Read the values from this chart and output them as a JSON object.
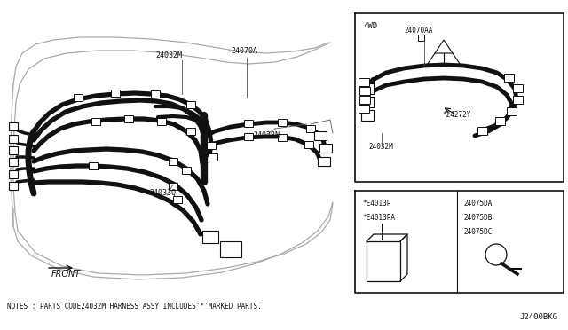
{
  "bg_color": "#ffffff",
  "line_color": "#111111",
  "note_text": "NOTES : PARTS CODE24032M HARNESS ASSY INCLUDES'*'MARKED PARTS.",
  "part_id": "J2400BKG",
  "label_front": "FRONT"
}
